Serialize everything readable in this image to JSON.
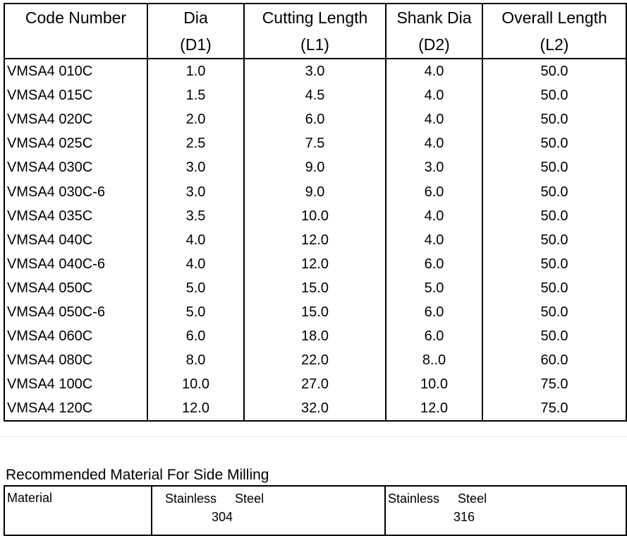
{
  "spec_table": {
    "headers": [
      {
        "line1": "Code Number",
        "line2": ""
      },
      {
        "line1": "Dia",
        "line2": "(D1)"
      },
      {
        "line1": "Cutting Length",
        "line2": "(L1)"
      },
      {
        "line1": "Shank Dia",
        "line2": "(D2)"
      },
      {
        "line1": "Overall Length",
        "line2": "(L2)"
      }
    ],
    "rows": [
      [
        "VMSA4 010C",
        "1.0",
        "3.0",
        "4.0",
        "50.0"
      ],
      [
        "VMSA4 015C",
        "1.5",
        "4.5",
        "4.0",
        "50.0"
      ],
      [
        "VMSA4 020C",
        "2.0",
        "6.0",
        "4.0",
        "50.0"
      ],
      [
        "VMSA4 025C",
        "2.5",
        "7.5",
        "4.0",
        "50.0"
      ],
      [
        "VMSA4 030C",
        "3.0",
        "9.0",
        "3.0",
        "50.0"
      ],
      [
        "VMSA4 030C-6",
        "3.0",
        "9.0",
        "6.0",
        "50.0"
      ],
      [
        "VMSA4 035C",
        "3.5",
        "10.0",
        "4.0",
        "50.0"
      ],
      [
        "VMSA4 040C",
        "4.0",
        "12.0",
        "4.0",
        "50.0"
      ],
      [
        "VMSA4 040C-6",
        "4.0",
        "12.0",
        "6.0",
        "50.0"
      ],
      [
        "VMSA4 050C",
        "5.0",
        "15.0",
        "5.0",
        "50.0"
      ],
      [
        "VMSA4 050C-6",
        "5.0",
        "15.0",
        "6.0",
        "50.0"
      ],
      [
        "VMSA4 060C",
        "6.0",
        "18.0",
        "6.0",
        "50.0"
      ],
      [
        "VMSA4 080C",
        "8.0",
        "22.0",
        "8..0",
        "60.0"
      ],
      [
        "VMSA4 100C",
        "10.0",
        "27.0",
        "10.0",
        "75.0"
      ],
      [
        "VMSA4 120C",
        "12.0",
        "32.0",
        "12.0",
        "75.0"
      ]
    ]
  },
  "material_section": {
    "title": "Recommended Material For Side Milling",
    "label": "Material",
    "options": [
      {
        "word1": "Stainless",
        "word2": "Steel",
        "grade": "304"
      },
      {
        "word1": "Stainless",
        "word2": "Steel",
        "grade": "316"
      }
    ]
  }
}
